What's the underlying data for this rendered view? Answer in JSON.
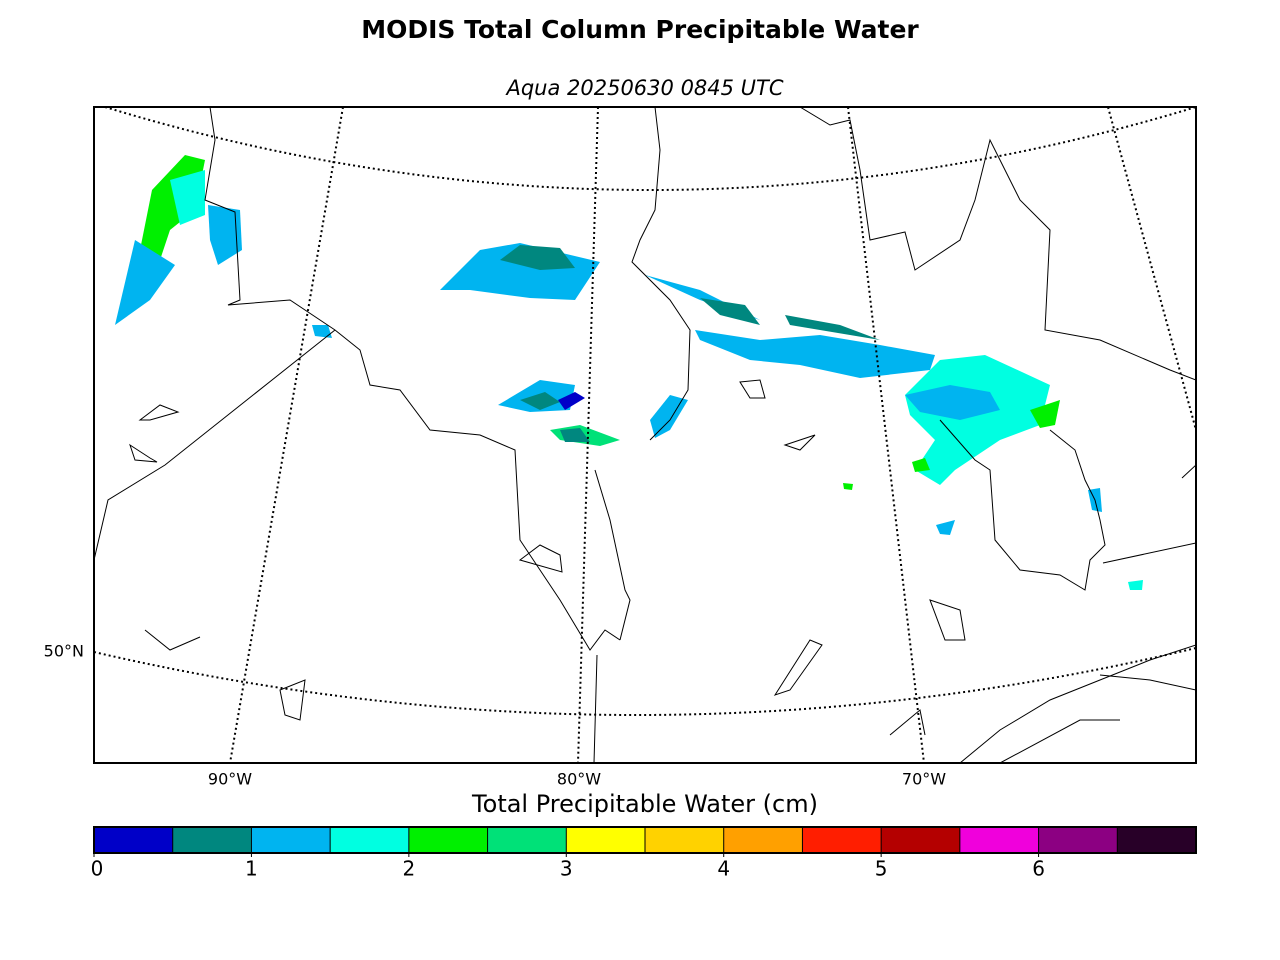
{
  "title": "MODIS Total Column Precipitable Water",
  "subtitle": "Aqua 20250630 0845 UTC",
  "map": {
    "lon_labels": [
      "90°W",
      "80°W",
      "70°W"
    ],
    "lat_labels": [
      "50°N"
    ]
  },
  "colorbar": {
    "label": "Total Precipitable Water (cm)",
    "lim": [
      0,
      7
    ],
    "ticks": [
      0,
      1,
      2,
      3,
      4,
      5,
      6
    ],
    "bins": [
      0,
      0.5,
      1,
      1.5,
      2,
      2.5,
      3,
      3.5,
      4,
      4.5,
      5,
      5.5,
      6,
      6.5,
      7
    ],
    "colors": [
      "#0000c8",
      "#00877f",
      "#00b4f0",
      "#00ffe1",
      "#00f000",
      "#00e178",
      "#ffff00",
      "#ffd200",
      "#ffa000",
      "#ff1e00",
      "#b40000",
      "#f000dc",
      "#8c0082",
      "#280028"
    ]
  }
}
